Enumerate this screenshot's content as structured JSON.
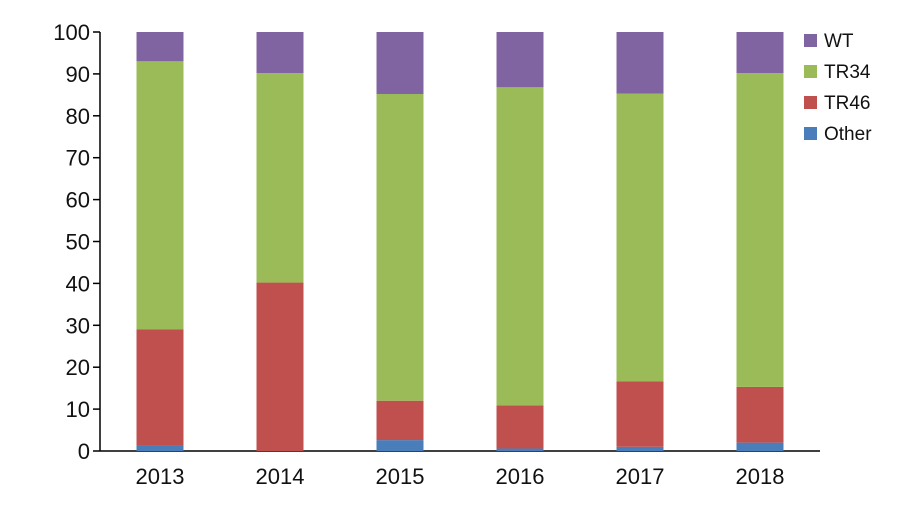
{
  "chart_data": {
    "type": "bar",
    "stacked": true,
    "categories": [
      "2013",
      "2014",
      "2015",
      "2016",
      "2017",
      "2018"
    ],
    "series": [
      {
        "name": "Other",
        "color": "#4A7EBB",
        "values": [
          1.3,
          0,
          2.6,
          0.6,
          1.0,
          2.0
        ]
      },
      {
        "name": "TR46",
        "color": "#C0504D",
        "values": [
          27.7,
          40.2,
          9.4,
          10.3,
          15.6,
          13.3
        ]
      },
      {
        "name": "TR34",
        "color": "#9BBB59",
        "values": [
          64.0,
          50.0,
          73.2,
          75.9,
          68.7,
          74.9
        ]
      },
      {
        "name": "WT",
        "color": "#8064A2",
        "values": [
          7.0,
          9.8,
          14.8,
          13.2,
          14.7,
          9.8
        ]
      }
    ],
    "legend_order": [
      "WT",
      "TR34",
      "TR46",
      "Other"
    ],
    "ylim": [
      0,
      100
    ],
    "yticks": [
      0,
      10,
      20,
      30,
      40,
      50,
      60,
      70,
      80,
      90,
      100
    ],
    "title": "",
    "xlabel": "",
    "ylabel": "",
    "grid": false,
    "legend_position": "top-right"
  }
}
